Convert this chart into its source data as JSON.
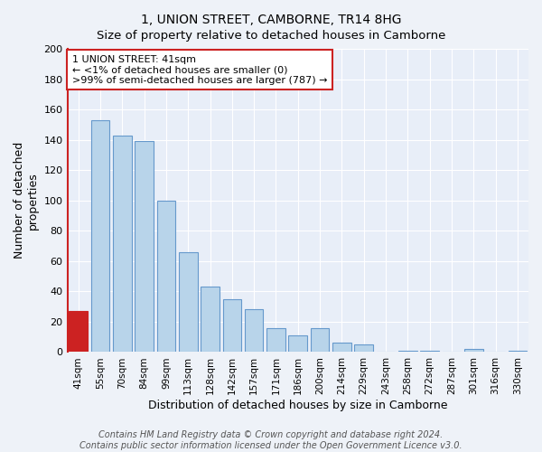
{
  "title": "1, UNION STREET, CAMBORNE, TR14 8HG",
  "subtitle": "Size of property relative to detached houses in Camborne",
  "xlabel": "Distribution of detached houses by size in Camborne",
  "ylabel": "Number of detached\nproperties",
  "categories": [
    "41sqm",
    "55sqm",
    "70sqm",
    "84sqm",
    "99sqm",
    "113sqm",
    "128sqm",
    "142sqm",
    "157sqm",
    "171sqm",
    "186sqm",
    "200sqm",
    "214sqm",
    "229sqm",
    "243sqm",
    "258sqm",
    "272sqm",
    "287sqm",
    "301sqm",
    "316sqm",
    "330sqm"
  ],
  "values": [
    27,
    153,
    143,
    139,
    100,
    66,
    43,
    35,
    28,
    16,
    11,
    16,
    6,
    5,
    0,
    1,
    1,
    0,
    2,
    0,
    1
  ],
  "bar_color_normal": "#b8d4ea",
  "bar_color_highlight": "#cc2222",
  "bar_edge_normal": "#6699cc",
  "bar_edge_highlight": "#cc2222",
  "highlight_index": 0,
  "ylim": [
    0,
    200
  ],
  "yticks": [
    0,
    20,
    40,
    60,
    80,
    100,
    120,
    140,
    160,
    180,
    200
  ],
  "annotation_box_text": "1 UNION STREET: 41sqm\n← <1% of detached houses are smaller (0)\n>99% of semi-detached houses are larger (787) →",
  "footer_line1": "Contains HM Land Registry data © Crown copyright and database right 2024.",
  "footer_line2": "Contains public sector information licensed under the Open Government Licence v3.0.",
  "background_color": "#eef2f8",
  "plot_bg_color": "#e8eef8",
  "title_fontsize": 10,
  "axis_label_fontsize": 9,
  "tick_fontsize": 8,
  "footer_fontsize": 7
}
